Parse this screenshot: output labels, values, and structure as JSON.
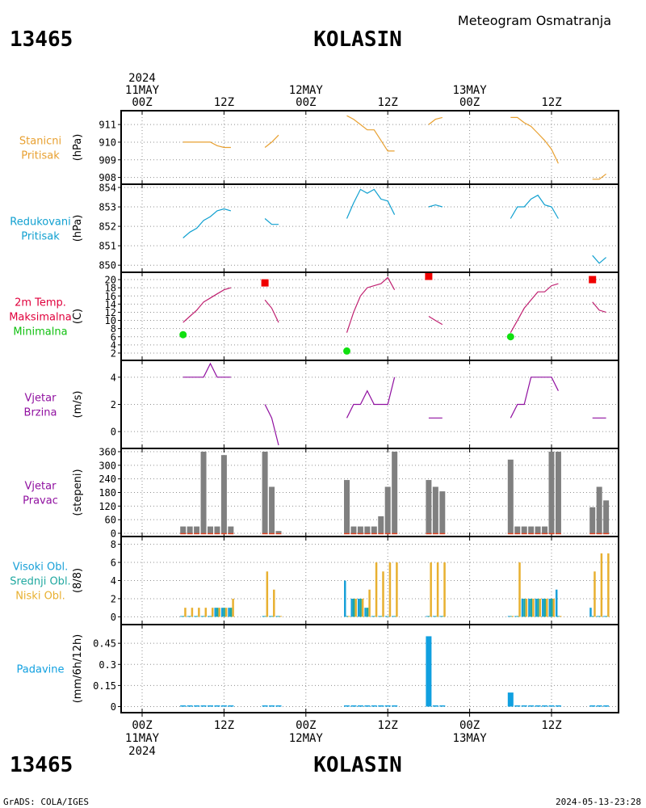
{
  "header": {
    "station_id": "13465",
    "station_name": "KOLASIN",
    "title": "Meteogram Osmatranja"
  },
  "footer": {
    "station_id": "13465",
    "station_name": "KOLASIN",
    "credit": "GrADS: COLA/IGES",
    "timestamp": "2024-05-13-23:28"
  },
  "time_axis": {
    "hours": [
      0,
      72
    ],
    "top_ticks": [
      {
        "h": 0,
        "lines": [
          "2024",
          "11MAY",
          "00Z"
        ]
      },
      {
        "h": 12,
        "lines": [
          "12Z"
        ]
      },
      {
        "h": 24,
        "lines": [
          "12MAY",
          "00Z"
        ]
      },
      {
        "h": 36,
        "lines": [
          "12Z"
        ]
      },
      {
        "h": 48,
        "lines": [
          "13MAY",
          "00Z"
        ]
      },
      {
        "h": 60,
        "lines": [
          "12Z"
        ]
      }
    ],
    "bottom_ticks": [
      {
        "h": 0,
        "lines": [
          "00Z",
          "11MAY",
          "2024"
        ]
      },
      {
        "h": 12,
        "lines": [
          "12Z"
        ]
      },
      {
        "h": 24,
        "lines": [
          "00Z",
          "12MAY"
        ]
      },
      {
        "h": 36,
        "lines": [
          "12Z"
        ]
      },
      {
        "h": 48,
        "lines": [
          "00Z",
          "13MAY"
        ]
      },
      {
        "h": 60,
        "lines": [
          "12Z"
        ]
      }
    ]
  },
  "colors": {
    "station_pressure": "#e8a030",
    "reduced_pressure": "#10a0d0",
    "tmax_label": "#e0003c",
    "tmax_marker": "#f00000",
    "tmin_label": "#10c010",
    "tmin_marker": "#10e010",
    "temp_line": "#c02070",
    "wind": "#9010a0",
    "wind_bar": "#808080",
    "wind_base": "#e04020",
    "cloud_high": "#18a0d8",
    "cloud_mid": "#20a8a0",
    "cloud_low": "#e8b030",
    "precip": "#10a0e0"
  },
  "chart_data": [
    {
      "id": "station_pressure",
      "type": "line",
      "labels": [
        "Stanicni",
        "Pritisak"
      ],
      "ylabel": "(hPa)",
      "ylim": [
        907.8,
        911.6
      ],
      "yticks": [
        908,
        909,
        910,
        911
      ],
      "segments": [
        [
          [
            6,
            910.0
          ],
          [
            7,
            910.0
          ],
          [
            8,
            910.0
          ],
          [
            9,
            910.0
          ],
          [
            10,
            910.0
          ],
          [
            11,
            909.8
          ],
          [
            12,
            909.7
          ],
          [
            13,
            909.7
          ]
        ],
        [
          [
            18,
            909.7
          ],
          [
            19,
            910.0
          ],
          [
            20,
            910.4
          ]
        ],
        [
          [
            30,
            911.5
          ],
          [
            31,
            911.3
          ],
          [
            32,
            911.0
          ],
          [
            33,
            910.7
          ],
          [
            34,
            910.7
          ],
          [
            35,
            910.1
          ],
          [
            36,
            909.5
          ],
          [
            37,
            909.5
          ]
        ],
        [
          [
            42,
            911.0
          ],
          [
            43,
            911.3
          ],
          [
            44,
            911.4
          ]
        ],
        [
          [
            54,
            911.4
          ],
          [
            55,
            911.4
          ],
          [
            56,
            911.1
          ],
          [
            57,
            910.9
          ],
          [
            58,
            910.5
          ],
          [
            59,
            910.1
          ],
          [
            60,
            909.6
          ],
          [
            61,
            908.8
          ]
        ],
        [
          [
            66,
            907.9
          ],
          [
            67,
            907.9
          ],
          [
            68,
            908.2
          ]
        ]
      ]
    },
    {
      "id": "reduced_pressure",
      "type": "line",
      "labels": [
        "Redukovani",
        "Pritisak"
      ],
      "ylabel": "(hPa)",
      "ylim": [
        849.8,
        854.0
      ],
      "yticks": [
        850,
        851,
        852,
        853,
        854
      ],
      "segments": [
        [
          [
            6,
            851.4
          ],
          [
            7,
            851.7
          ],
          [
            8,
            851.9
          ],
          [
            9,
            852.3
          ],
          [
            10,
            852.5
          ],
          [
            11,
            852.8
          ],
          [
            12,
            852.9
          ],
          [
            13,
            852.8
          ]
        ],
        [
          [
            18,
            852.4
          ],
          [
            19,
            852.1
          ],
          [
            20,
            852.1
          ]
        ],
        [
          [
            30,
            852.4
          ],
          [
            31,
            853.2
          ],
          [
            32,
            853.9
          ],
          [
            33,
            853.7
          ],
          [
            34,
            853.9
          ],
          [
            35,
            853.4
          ],
          [
            36,
            853.3
          ],
          [
            37,
            852.6
          ]
        ],
        [
          [
            42,
            853.0
          ],
          [
            43,
            853.1
          ],
          [
            44,
            853.0
          ]
        ],
        [
          [
            54,
            852.4
          ],
          [
            55,
            853.0
          ],
          [
            56,
            853.0
          ],
          [
            57,
            853.4
          ],
          [
            58,
            853.6
          ],
          [
            59,
            853.1
          ],
          [
            60,
            853.0
          ],
          [
            61,
            852.4
          ]
        ],
        [
          [
            66,
            850.5
          ],
          [
            67,
            850.1
          ],
          [
            68,
            850.4
          ]
        ]
      ]
    },
    {
      "id": "temperature",
      "type": "line",
      "labels": [
        "2m Temp.",
        "Maksimalna",
        "Minimalna"
      ],
      "ylabel": "(C)",
      "ylim": [
        1,
        21
      ],
      "yticks": [
        2,
        4,
        6,
        8,
        10,
        12,
        14,
        16,
        18,
        20
      ],
      "segments": [
        [
          [
            6,
            9.5
          ],
          [
            7,
            11
          ],
          [
            8,
            12.5
          ],
          [
            9,
            14.5
          ],
          [
            10,
            15.5
          ],
          [
            11,
            16.5
          ],
          [
            12,
            17.5
          ],
          [
            13,
            18
          ]
        ],
        [
          [
            18,
            15
          ],
          [
            19,
            13
          ],
          [
            20,
            9.5
          ]
        ],
        [
          [
            30,
            7
          ],
          [
            31,
            12
          ],
          [
            32,
            16
          ],
          [
            33,
            18
          ],
          [
            34,
            18.5
          ],
          [
            35,
            19
          ],
          [
            36,
            20.5
          ],
          [
            37,
            17.5
          ]
        ],
        [
          [
            42,
            11
          ],
          [
            43,
            10
          ],
          [
            44,
            9
          ]
        ],
        [
          [
            54,
            7
          ],
          [
            55,
            10
          ],
          [
            56,
            13
          ],
          [
            57,
            15
          ],
          [
            58,
            17
          ],
          [
            59,
            17
          ],
          [
            60,
            18.5
          ],
          [
            61,
            19
          ]
        ],
        [
          [
            66,
            14.5
          ],
          [
            67,
            12.5
          ],
          [
            68,
            12
          ]
        ]
      ],
      "tmax": [
        [
          18,
          19.2
        ],
        [
          42,
          20.8
        ],
        [
          66,
          20
        ]
      ],
      "tmin": [
        [
          6,
          6.5
        ],
        [
          30,
          2.5
        ],
        [
          54,
          6
        ]
      ]
    },
    {
      "id": "wind_speed",
      "type": "line",
      "labels": [
        "Vjetar",
        "Brzina"
      ],
      "ylabel": "(m/s)",
      "ylim": [
        -1,
        5
      ],
      "yticks": [
        0,
        2,
        4
      ],
      "segments": [
        [
          [
            6,
            4
          ],
          [
            7,
            4
          ],
          [
            8,
            4
          ],
          [
            9,
            4
          ],
          [
            10,
            5
          ],
          [
            11,
            4
          ],
          [
            12,
            4
          ],
          [
            13,
            4
          ]
        ],
        [
          [
            18,
            2
          ],
          [
            19,
            1
          ],
          [
            20,
            -1
          ]
        ],
        [
          [
            30,
            1
          ],
          [
            31,
            2
          ],
          [
            32,
            2
          ],
          [
            33,
            3
          ],
          [
            34,
            2
          ],
          [
            35,
            2
          ],
          [
            36,
            2
          ],
          [
            37,
            4
          ]
        ],
        [
          [
            42,
            1
          ],
          [
            43,
            1
          ],
          [
            44,
            1
          ]
        ],
        [
          [
            54,
            1
          ],
          [
            55,
            2
          ],
          [
            56,
            2
          ],
          [
            57,
            4
          ],
          [
            58,
            4
          ],
          [
            59,
            4
          ],
          [
            60,
            4
          ],
          [
            61,
            3
          ]
        ],
        [
          [
            66,
            1
          ],
          [
            67,
            1
          ],
          [
            68,
            1
          ]
        ]
      ]
    },
    {
      "id": "wind_direction",
      "type": "bar",
      "labels": [
        "Vjetar",
        "Pravac"
      ],
      "ylabel": "(stepeni)",
      "ylim": [
        0,
        360
      ],
      "yticks": [
        0,
        60,
        120,
        180,
        240,
        300,
        360
      ],
      "bars": [
        [
          6,
          30
        ],
        [
          7,
          30
        ],
        [
          8,
          30
        ],
        [
          9,
          360
        ],
        [
          10,
          30
        ],
        [
          11,
          30
        ],
        [
          12,
          345
        ],
        [
          13,
          30
        ],
        [
          18,
          360
        ],
        [
          19,
          205
        ],
        [
          20,
          10
        ],
        [
          30,
          235
        ],
        [
          31,
          30
        ],
        [
          32,
          30
        ],
        [
          33,
          30
        ],
        [
          34,
          30
        ],
        [
          35,
          75
        ],
        [
          36,
          205
        ],
        [
          37,
          360
        ],
        [
          42,
          235
        ],
        [
          43,
          205
        ],
        [
          44,
          185
        ],
        [
          54,
          325
        ],
        [
          55,
          30
        ],
        [
          56,
          30
        ],
        [
          57,
          30
        ],
        [
          58,
          30
        ],
        [
          59,
          30
        ],
        [
          60,
          360
        ],
        [
          61,
          360
        ],
        [
          66,
          115
        ],
        [
          67,
          205
        ],
        [
          68,
          145
        ]
      ]
    },
    {
      "id": "clouds",
      "type": "bar",
      "labels": [
        "Visoki Obl.",
        "Srednji Obl.",
        "Niski Obl."
      ],
      "ylabel": "(8/8)",
      "ylim": [
        -0.5,
        8.5
      ],
      "yticks": [
        0,
        2,
        4,
        6,
        8
      ],
      "rows": [
        [
          6,
          0,
          0,
          1
        ],
        [
          7,
          0,
          0,
          1
        ],
        [
          8,
          0,
          0,
          1
        ],
        [
          9,
          0,
          0,
          1
        ],
        [
          10,
          0,
          0,
          1
        ],
        [
          11,
          1,
          1,
          1
        ],
        [
          12,
          1,
          1,
          1
        ],
        [
          13,
          1,
          1,
          2
        ],
        [
          18,
          0,
          0,
          5
        ],
        [
          19,
          0,
          0,
          3
        ],
        [
          20,
          0,
          0,
          0
        ],
        [
          30,
          4,
          0,
          0
        ],
        [
          31,
          2,
          2,
          2
        ],
        [
          32,
          2,
          2,
          2
        ],
        [
          33,
          1,
          1,
          3
        ],
        [
          34,
          0,
          0,
          6
        ],
        [
          35,
          0,
          0,
          5
        ],
        [
          36,
          0,
          0,
          6
        ],
        [
          37,
          0,
          0,
          6
        ],
        [
          42,
          0,
          0,
          6
        ],
        [
          43,
          0,
          0,
          6
        ],
        [
          44,
          0,
          0,
          6
        ],
        [
          54,
          0,
          0,
          0
        ],
        [
          55,
          0,
          0,
          6
        ],
        [
          56,
          2,
          2,
          2
        ],
        [
          57,
          2,
          2,
          2
        ],
        [
          58,
          2,
          2,
          2
        ],
        [
          59,
          2,
          2,
          2
        ],
        [
          60,
          2,
          2,
          2
        ],
        [
          61,
          3,
          0,
          0
        ],
        [
          66,
          1,
          0,
          5
        ],
        [
          67,
          0,
          0,
          7
        ],
        [
          68,
          0,
          0,
          7
        ]
      ]
    },
    {
      "id": "precipitation",
      "type": "bar",
      "labels": [
        "Padavine"
      ],
      "ylabel": "(mm/6h/12h)",
      "ylim": [
        -0.02,
        0.56
      ],
      "yticks": [
        0,
        0.15,
        0.3,
        0.45
      ],
      "bars": [
        [
          6,
          0
        ],
        [
          7,
          0
        ],
        [
          8,
          0
        ],
        [
          9,
          0
        ],
        [
          10,
          0
        ],
        [
          11,
          0
        ],
        [
          12,
          0
        ],
        [
          13,
          0
        ],
        [
          18,
          0
        ],
        [
          19,
          0
        ],
        [
          20,
          0
        ],
        [
          30,
          0
        ],
        [
          31,
          0
        ],
        [
          32,
          0
        ],
        [
          33,
          0
        ],
        [
          34,
          0
        ],
        [
          35,
          0
        ],
        [
          36,
          0
        ],
        [
          37,
          0
        ],
        [
          42,
          0.5
        ],
        [
          43,
          0
        ],
        [
          44,
          0
        ],
        [
          54,
          0.1
        ],
        [
          55,
          0
        ],
        [
          56,
          0
        ],
        [
          57,
          0
        ],
        [
          58,
          0
        ],
        [
          59,
          0
        ],
        [
          60,
          0
        ],
        [
          61,
          0
        ],
        [
          66,
          0
        ],
        [
          67,
          0
        ],
        [
          68,
          0
        ]
      ]
    }
  ]
}
